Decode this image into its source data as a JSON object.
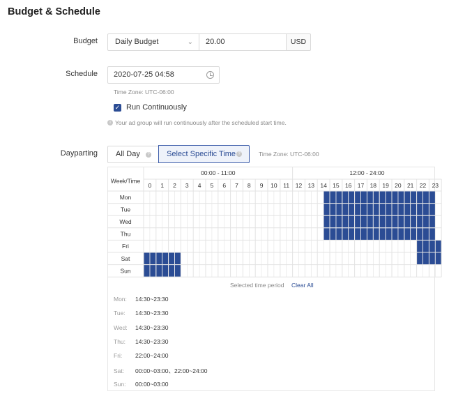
{
  "page_title": "Budget & Schedule",
  "budget": {
    "label": "Budget",
    "type_value": "Daily Budget",
    "amount_value": "20.00",
    "currency": "USD"
  },
  "schedule": {
    "label": "Schedule",
    "start_value": "2020-07-25 04:58",
    "timezone_hint": "Time Zone: UTC-06:00",
    "run_continuously_label": "Run Continuously",
    "run_continuously_checked": true,
    "continuous_hint": "Your ad group will run continuously after the scheduled start time."
  },
  "dayparting": {
    "label": "Dayparting",
    "options": [
      "All Day",
      "Select Specific Time"
    ],
    "selected_option": "Select Specific Time",
    "timezone_hint": "Time Zone: UTC-06:00",
    "grid": {
      "corner_header": "Week/Time",
      "am_header": "00:00 - 11:00",
      "pm_header": "12:00 - 24:00",
      "hours": [
        "0",
        "1",
        "2",
        "3",
        "4",
        "5",
        "6",
        "7",
        "8",
        "9",
        "10",
        "11",
        "12",
        "13",
        "14",
        "15",
        "16",
        "17",
        "18",
        "19",
        "20",
        "21",
        "22",
        "23"
      ],
      "days": [
        "Mon",
        "Tue",
        "Wed",
        "Thu",
        "Fri",
        "Sat",
        "Sun"
      ],
      "selected_ranges_half_hours": {
        "Mon": [
          [
            29,
            47
          ]
        ],
        "Tue": [
          [
            29,
            47
          ]
        ],
        "Wed": [
          [
            29,
            47
          ]
        ],
        "Thu": [
          [
            29,
            47
          ]
        ],
        "Fri": [
          [
            44,
            48
          ]
        ],
        "Sat": [
          [
            0,
            6
          ],
          [
            44,
            48
          ]
        ],
        "Sun": [
          [
            0,
            6
          ]
        ]
      },
      "selected_color": "#2b4c94"
    },
    "selected_caption": "Selected time period",
    "clear_all": "Clear All",
    "summary": [
      {
        "day": "Mon:",
        "value": "14:30~23:30"
      },
      {
        "day": "Tue:",
        "value": "14:30~23:30"
      },
      {
        "day": "Wed:",
        "value": "14:30~23:30"
      },
      {
        "day": "Thu:",
        "value": "14:30~23:30"
      },
      {
        "day": "Fri:",
        "value": "22:00~24:00"
      },
      {
        "day": "Sat:",
        "value": "00:00~03:00、22:00~24:00"
      },
      {
        "day": "Sun:",
        "value": "00:00~03:00"
      }
    ]
  }
}
